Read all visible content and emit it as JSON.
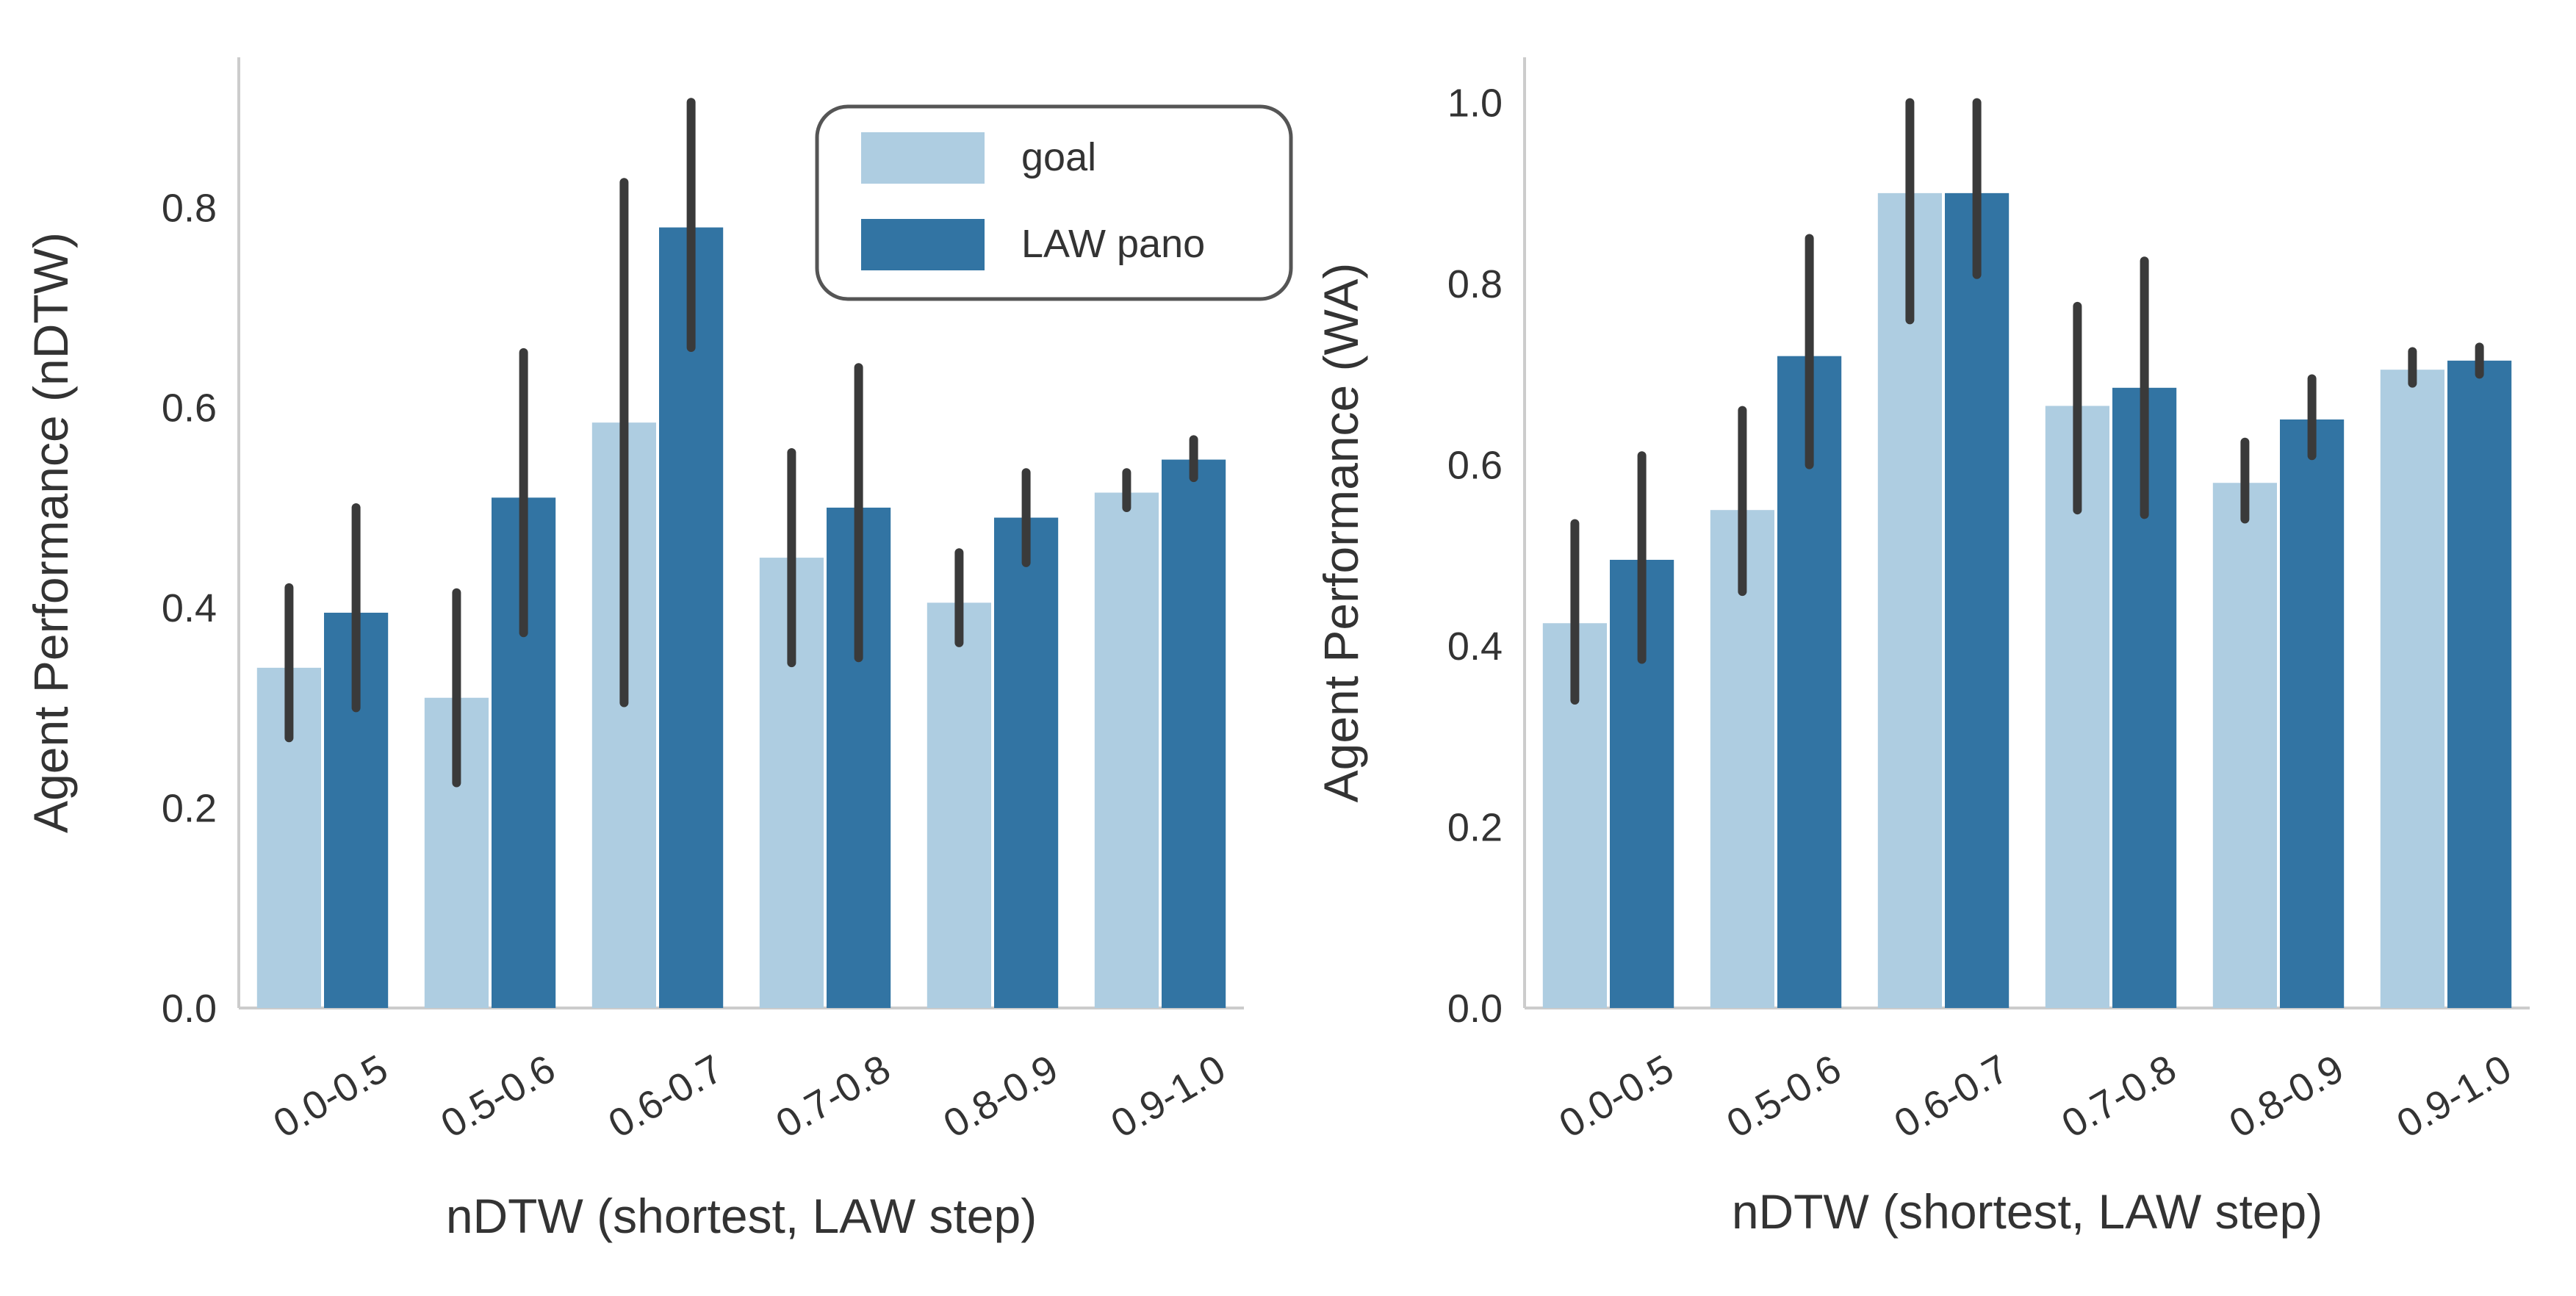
{
  "colors": {
    "goal": "#aecde1",
    "law_pano": "#3274a3",
    "error_bar": "#3a3a3a",
    "axis": "#cccccc"
  },
  "legend": {
    "placement": "upper-right",
    "entries": [
      "goal",
      "LAW pano"
    ]
  },
  "chart_data": [
    {
      "type": "bar",
      "title": "",
      "xlabel": "nDTW (shortest, LAW step)",
      "ylabel": "Agent Performance (nDTW)",
      "ylim": [
        0,
        0.95
      ],
      "yticks": [
        "0.0",
        "0.2",
        "0.4",
        "0.6",
        "0.8"
      ],
      "yticks_values": [
        0,
        0.2,
        0.4,
        0.6,
        0.8
      ],
      "grid": false,
      "categories": [
        "0.0-0.5",
        "0.5-0.6",
        "0.6-0.7",
        "0.7-0.8",
        "0.8-0.9",
        "0.9-1.0"
      ],
      "series": [
        {
          "name": "goal",
          "values": [
            0.34,
            0.31,
            0.585,
            0.45,
            0.405,
            0.515
          ],
          "err_low": [
            0.27,
            0.225,
            0.305,
            0.345,
            0.365,
            0.5
          ],
          "err_high": [
            0.42,
            0.415,
            0.825,
            0.555,
            0.455,
            0.535
          ]
        },
        {
          "name": "LAW pano",
          "values": [
            0.395,
            0.51,
            0.78,
            0.5,
            0.49,
            0.548
          ],
          "err_low": [
            0.3,
            0.375,
            0.66,
            0.35,
            0.445,
            0.53
          ],
          "err_high": [
            0.5,
            0.655,
            0.905,
            0.64,
            0.535,
            0.568
          ]
        }
      ]
    },
    {
      "type": "bar",
      "title": "",
      "xlabel": "nDTW (shortest, LAW step)",
      "ylabel": "Agent Performance (WA)",
      "ylim": [
        0,
        1.05
      ],
      "yticks": [
        "0.0",
        "0.2",
        "0.4",
        "0.6",
        "0.8",
        "1.0"
      ],
      "yticks_values": [
        0,
        0.2,
        0.4,
        0.6,
        0.8,
        1.0
      ],
      "grid": false,
      "categories": [
        "0.0-0.5",
        "0.5-0.6",
        "0.6-0.7",
        "0.7-0.8",
        "0.8-0.9",
        "0.9-1.0"
      ],
      "series": [
        {
          "name": "goal",
          "values": [
            0.425,
            0.55,
            0.9,
            0.665,
            0.58,
            0.705
          ],
          "err_low": [
            0.34,
            0.46,
            0.76,
            0.55,
            0.54,
            0.69
          ],
          "err_high": [
            0.535,
            0.66,
            1.0,
            0.775,
            0.625,
            0.725
          ]
        },
        {
          "name": "LAW pano",
          "values": [
            0.495,
            0.72,
            0.9,
            0.685,
            0.65,
            0.715
          ],
          "err_low": [
            0.385,
            0.6,
            0.81,
            0.545,
            0.61,
            0.7
          ],
          "err_high": [
            0.61,
            0.85,
            1.0,
            0.825,
            0.695,
            0.73
          ]
        }
      ]
    }
  ]
}
